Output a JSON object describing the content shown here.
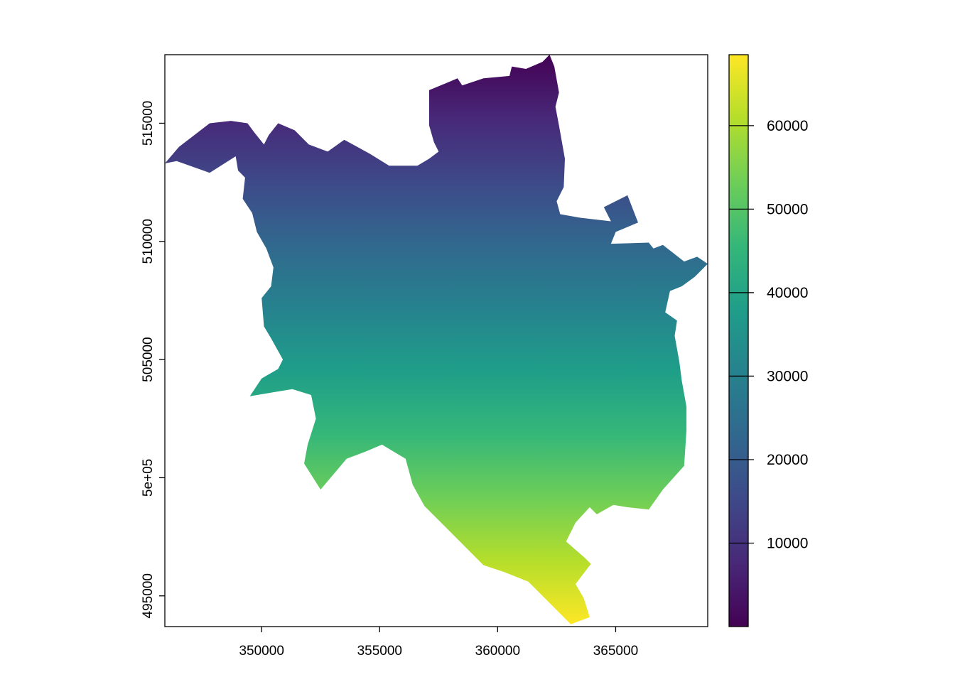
{
  "chart_data": {
    "type": "heatmap",
    "title": "",
    "xlabel": "",
    "ylabel": "",
    "xlim": [
      345900,
      368900
    ],
    "ylim": [
      493700,
      517900
    ],
    "x_ticks": [
      {
        "value": 350000,
        "label": "350000"
      },
      {
        "value": 355000,
        "label": "355000"
      },
      {
        "value": 360000,
        "label": "360000"
      },
      {
        "value": 365000,
        "label": "365000"
      }
    ],
    "y_ticks": [
      {
        "value": 495000,
        "label": "495000"
      },
      {
        "value": 500000,
        "label": "5e+05"
      },
      {
        "value": 505000,
        "label": "505000"
      },
      {
        "value": 510000,
        "label": "510000"
      },
      {
        "value": 515000,
        "label": "515000"
      }
    ],
    "colorbar": {
      "min": 0,
      "max": 68500,
      "colormap": [
        "#440154",
        "#482878",
        "#3e4989",
        "#31688e",
        "#26828e",
        "#1f9e89",
        "#35b779",
        "#6ece58",
        "#b5de2b",
        "#fde725"
      ],
      "ticks": [
        {
          "value": 10000,
          "label": "10000"
        },
        {
          "value": 20000,
          "label": "20000"
        },
        {
          "value": 30000,
          "label": "30000"
        },
        {
          "value": 40000,
          "label": "40000"
        },
        {
          "value": 50000,
          "label": "50000"
        },
        {
          "value": 60000,
          "label": "60000"
        }
      ]
    },
    "raster": {
      "description_value": "value increases from north (about 0) to south (about 68500)",
      "value_top": 0,
      "value_bottom": 68500,
      "boundary": [
        [
          362200,
          517900
        ],
        [
          362400,
          517400
        ],
        [
          362600,
          516300
        ],
        [
          362450,
          515700
        ],
        [
          362600,
          514900
        ],
        [
          362850,
          513500
        ],
        [
          362800,
          512300
        ],
        [
          362500,
          511700
        ],
        [
          362650,
          511150
        ],
        [
          363500,
          511000
        ],
        [
          364800,
          510850
        ],
        [
          364500,
          511450
        ],
        [
          365500,
          511950
        ],
        [
          365950,
          510800
        ],
        [
          365000,
          510400
        ],
        [
          364800,
          509900
        ],
        [
          366400,
          509950
        ],
        [
          366600,
          509700
        ],
        [
          367000,
          509850
        ],
        [
          367900,
          509150
        ],
        [
          368450,
          509350
        ],
        [
          368900,
          509050
        ],
        [
          368350,
          508500
        ],
        [
          367800,
          508100
        ],
        [
          367300,
          507900
        ],
        [
          367100,
          507000
        ],
        [
          367600,
          506650
        ],
        [
          367500,
          506000
        ],
        [
          367700,
          504900
        ],
        [
          367800,
          504100
        ],
        [
          368000,
          503000
        ],
        [
          368000,
          502000
        ],
        [
          367900,
          500500
        ],
        [
          367000,
          499500
        ],
        [
          366400,
          498650
        ],
        [
          365500,
          498750
        ],
        [
          364900,
          498850
        ],
        [
          364200,
          498450
        ],
        [
          363900,
          498750
        ],
        [
          363300,
          498100
        ],
        [
          362900,
          497300
        ],
        [
          363700,
          496600
        ],
        [
          363950,
          496350
        ],
        [
          363300,
          495500
        ],
        [
          363650,
          494900
        ],
        [
          363900,
          494100
        ],
        [
          363100,
          493800
        ],
        [
          362100,
          494800
        ],
        [
          361300,
          495600
        ],
        [
          360300,
          496000
        ],
        [
          359400,
          496300
        ],
        [
          358700,
          497000
        ],
        [
          357800,
          497900
        ],
        [
          356900,
          498800
        ],
        [
          356400,
          499700
        ],
        [
          356100,
          500800
        ],
        [
          355100,
          501400
        ],
        [
          354400,
          501100
        ],
        [
          353600,
          500800
        ],
        [
          352500,
          499500
        ],
        [
          351800,
          500600
        ],
        [
          351950,
          501400
        ],
        [
          352300,
          502500
        ],
        [
          352100,
          503500
        ],
        [
          351300,
          503750
        ],
        [
          349500,
          503450
        ],
        [
          350000,
          504200
        ],
        [
          350700,
          504600
        ],
        [
          350900,
          505000
        ],
        [
          350400,
          505900
        ],
        [
          350100,
          506400
        ],
        [
          350000,
          507600
        ],
        [
          350400,
          508100
        ],
        [
          350500,
          508900
        ],
        [
          350200,
          509700
        ],
        [
          349800,
          510400
        ],
        [
          349600,
          511200
        ],
        [
          349200,
          511800
        ],
        [
          349300,
          512700
        ],
        [
          349000,
          513000
        ],
        [
          348900,
          513600
        ],
        [
          347800,
          512900
        ],
        [
          346400,
          513400
        ],
        [
          345900,
          513300
        ],
        [
          346500,
          514000
        ],
        [
          347800,
          515000
        ],
        [
          348700,
          515100
        ],
        [
          349400,
          515000
        ],
        [
          349700,
          514600
        ],
        [
          350100,
          514100
        ],
        [
          350300,
          514500
        ],
        [
          350700,
          515000
        ],
        [
          351400,
          514700
        ],
        [
          352000,
          514100
        ],
        [
          352800,
          513800
        ],
        [
          353500,
          514300
        ],
        [
          354600,
          513700
        ],
        [
          355400,
          513200
        ],
        [
          356600,
          513200
        ],
        [
          357100,
          513500
        ],
        [
          357500,
          513800
        ],
        [
          357300,
          514200
        ],
        [
          357100,
          514900
        ],
        [
          357100,
          516400
        ],
        [
          358300,
          516900
        ],
        [
          358500,
          516600
        ],
        [
          359400,
          516900
        ],
        [
          360500,
          517000
        ],
        [
          360600,
          517400
        ],
        [
          361200,
          517300
        ],
        [
          361900,
          517600
        ]
      ]
    }
  }
}
